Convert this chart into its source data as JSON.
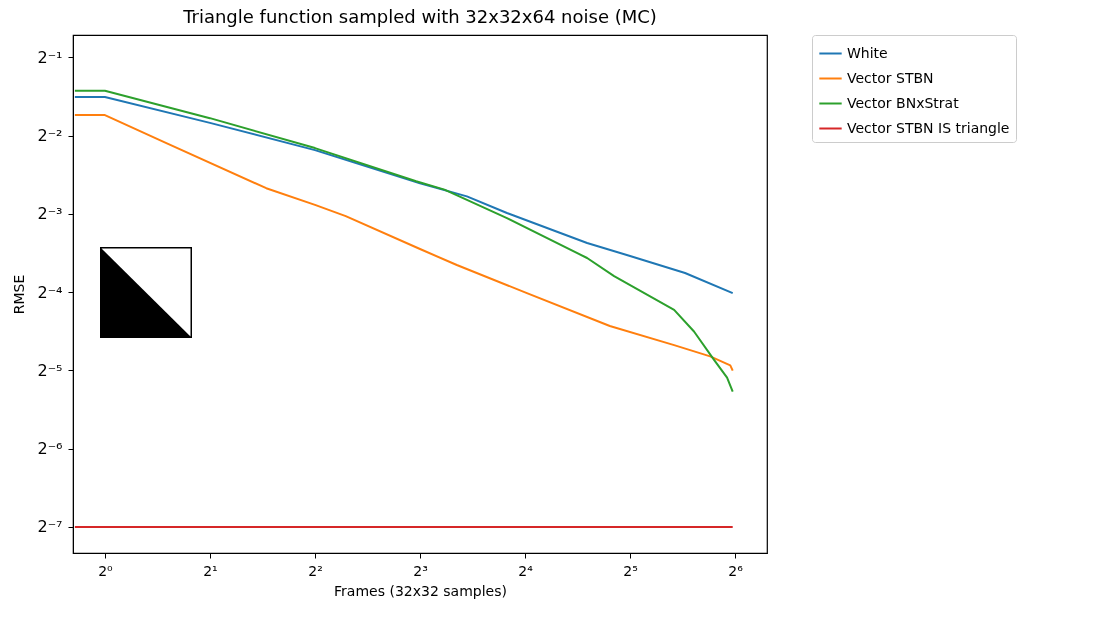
{
  "chart_data": {
    "type": "line",
    "title": "Triangle function sampled with 32x32x64 noise (MC)",
    "xlabel": "Frames (32x32 samples)",
    "ylabel": "RMSE",
    "log": "xy",
    "grid": false,
    "legend": "top right",
    "line_style": "solid",
    "marker": "none",
    "xlim": [
      0.81,
      79
    ],
    "ylim": [
      0.0062,
      0.61
    ],
    "xticks": [
      {
        "value": 1,
        "label": "2⁰"
      },
      {
        "value": 2,
        "label": "2¹"
      },
      {
        "value": 4,
        "label": "2²"
      },
      {
        "value": 8,
        "label": "2³"
      },
      {
        "value": 16,
        "label": "2⁴"
      },
      {
        "value": 32,
        "label": "2⁵"
      },
      {
        "value": 64,
        "label": "2⁶"
      }
    ],
    "yticks": [
      {
        "value": 0.5,
        "label": "2⁻¹"
      },
      {
        "value": 0.25,
        "label": "2⁻²"
      },
      {
        "value": 0.125,
        "label": "2⁻³"
      },
      {
        "value": 0.0625,
        "label": "2⁻⁴"
      },
      {
        "value": 0.03125,
        "label": "2⁻⁵"
      },
      {
        "value": 0.015625,
        "label": "2⁻⁶"
      },
      {
        "value": 0.0078125,
        "label": "2⁻⁷"
      }
    ],
    "series": [
      {
        "name": "White",
        "color": "#1f77b4",
        "x": [
          0.82,
          1,
          2,
          4,
          8,
          10.9,
          14.2,
          24.1,
          32,
          46,
          63
        ],
        "values": [
          0.352,
          0.352,
          0.28,
          0.22,
          0.164,
          0.146,
          0.126,
          0.0966,
          0.0861,
          0.0741,
          0.062
        ]
      },
      {
        "name": "Vector STBN",
        "color": "#ff7f0e",
        "x": [
          0.82,
          1,
          1.5,
          2.9,
          4,
          4.9,
          8,
          10.2,
          16.2,
          28,
          42.8,
          54.3,
          62,
          63
        ],
        "values": [
          0.3,
          0.3,
          0.234,
          0.157,
          0.1355,
          0.1226,
          0.0916,
          0.0795,
          0.062,
          0.0463,
          0.0391,
          0.0354,
          0.0327,
          0.0312
        ]
      },
      {
        "name": "Vector BNxStrat",
        "color": "#2ca02c",
        "x": [
          0.82,
          1,
          2,
          4,
          7.8,
          9.4,
          14.2,
          24.1,
          28.8,
          42.8,
          48.8,
          55.7,
          60.7,
          63
        ],
        "values": [
          0.372,
          0.372,
          0.292,
          0.224,
          0.167,
          0.155,
          0.1205,
          0.0846,
          0.072,
          0.0534,
          0.0441,
          0.0343,
          0.0293,
          0.0259
        ]
      },
      {
        "name": "Vector STBN IS triangle",
        "color": "#d62728",
        "x": [
          0.82,
          63
        ],
        "values": [
          0.00781,
          0.00781
        ]
      }
    ]
  }
}
